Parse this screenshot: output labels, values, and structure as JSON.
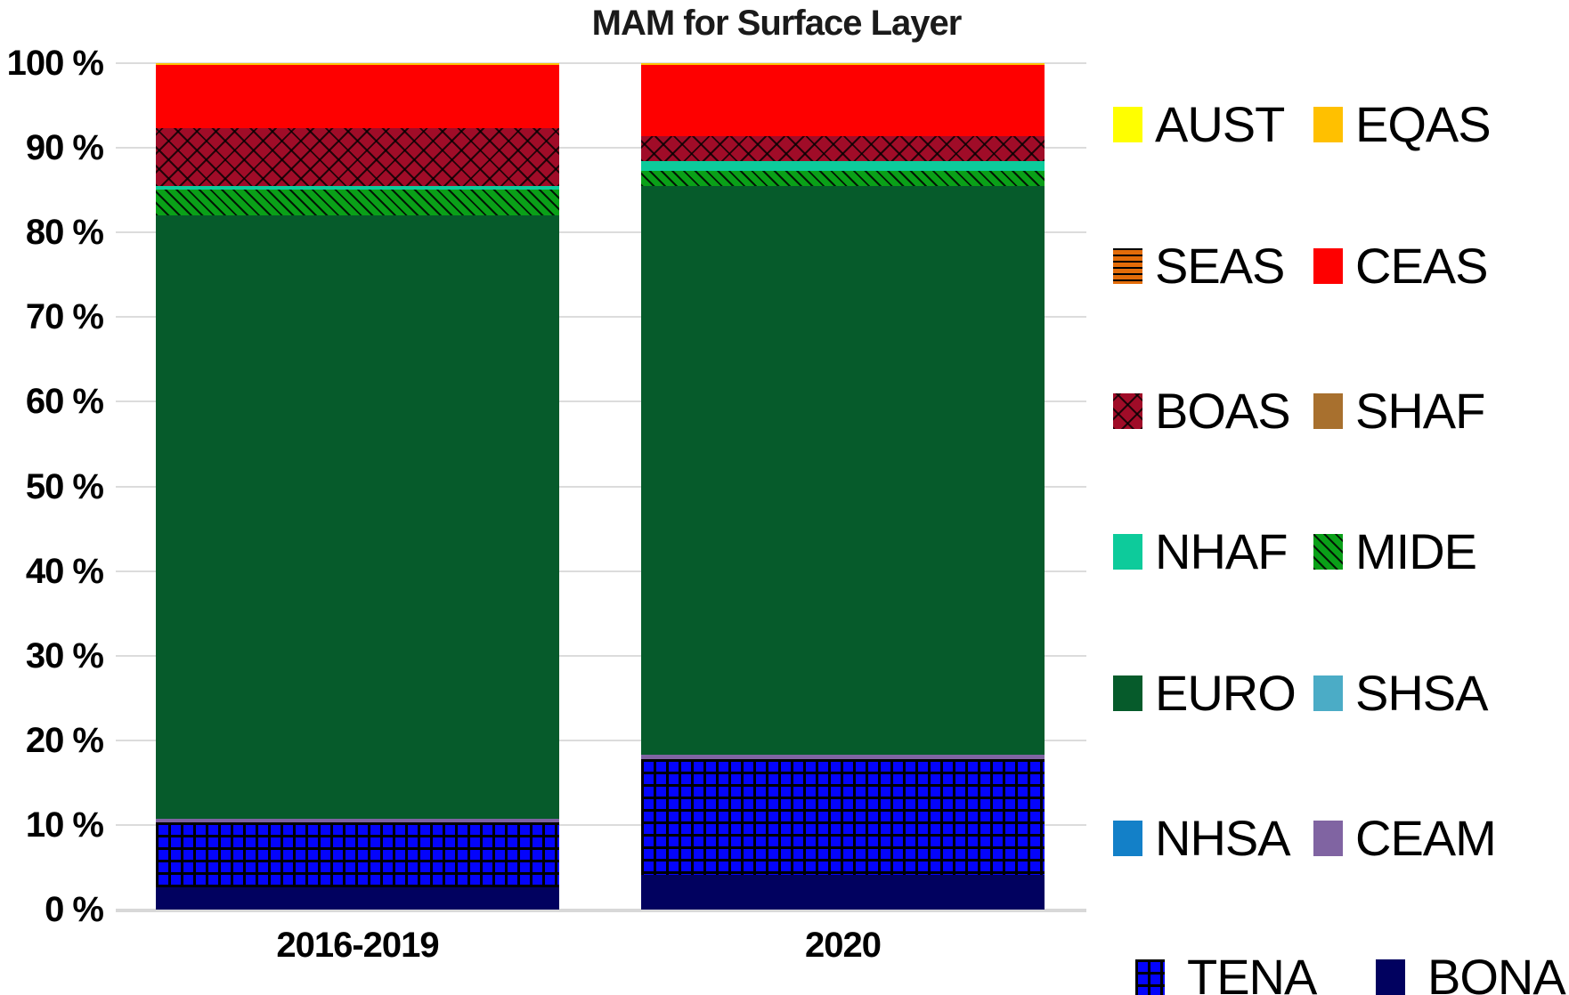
{
  "chart_data": {
    "type": "bar",
    "stacked": true,
    "title": "MAM for Surface Layer",
    "categories": [
      "2016-2019",
      "2020"
    ],
    "xlabel": "",
    "ylabel": "",
    "ylim": [
      0,
      100
    ],
    "ytick_step": 10,
    "ytick_labels": [
      "0 %",
      "10 %",
      "20 %",
      "30 %",
      "40 %",
      "50 %",
      "60 %",
      "70 %",
      "80 %",
      "90 %",
      "100 %"
    ],
    "grid": "horizontal",
    "gridline_color": "#dcdcdc",
    "legend_position": "right",
    "legend_columns": 2,
    "legend_order": [
      "AUST",
      "EQAS",
      "SEAS",
      "CEAS",
      "BOAS",
      "SHAF",
      "NHAF",
      "MIDE",
      "EURO",
      "SHSA",
      "NHSA",
      "CEAM",
      "TENA",
      "BONA"
    ],
    "stack_order_bottom_to_top": [
      "BONA",
      "TENA",
      "CEAM",
      "NHSA",
      "SHSA",
      "EURO",
      "MIDE",
      "NHAF",
      "SHAF",
      "BOAS",
      "CEAS",
      "SEAS",
      "EQAS",
      "AUST"
    ],
    "series": [
      {
        "name": "AUST",
        "color": "#FFFF00",
        "pattern": "solid",
        "values": [
          0,
          0
        ]
      },
      {
        "name": "EQAS",
        "color": "#FFC000",
        "pattern": "solid",
        "values": [
          0.2,
          0.2
        ]
      },
      {
        "name": "SEAS",
        "color": "#E36C09",
        "pattern": "hstripe",
        "values": [
          0,
          0
        ]
      },
      {
        "name": "CEAS",
        "color": "#FE0000",
        "pattern": "solid",
        "values": [
          7.5,
          8.4
        ]
      },
      {
        "name": "BOAS",
        "color": "#A00C28",
        "pattern": "lattice",
        "values": [
          6.8,
          3.0
        ]
      },
      {
        "name": "SHAF",
        "color": "#A8702E",
        "pattern": "solid",
        "values": [
          0,
          0
        ]
      },
      {
        "name": "NHAF",
        "color": "#0DCB9B",
        "pattern": "solid",
        "values": [
          0.4,
          1.1
        ]
      },
      {
        "name": "MIDE",
        "color": "#0AA018",
        "pattern": "diag",
        "values": [
          3.1,
          1.8
        ]
      },
      {
        "name": "EURO",
        "color": "#065B2B",
        "pattern": "solid",
        "values": [
          71.3,
          67.2
        ]
      },
      {
        "name": "SHSA",
        "color": "#4BACC6",
        "pattern": "solid",
        "values": [
          0,
          0
        ]
      },
      {
        "name": "NHSA",
        "color": "#1380C8",
        "pattern": "solid",
        "values": [
          0,
          0
        ]
      },
      {
        "name": "CEAM",
        "color": "#8064A2",
        "pattern": "solid",
        "values": [
          0.4,
          0.5
        ]
      },
      {
        "name": "TENA",
        "color": "#0404FC",
        "pattern": "grid",
        "values": [
          7.7,
          13.7
        ]
      },
      {
        "name": "BONA",
        "color": "#01015F",
        "pattern": "solid",
        "values": [
          2.6,
          4.1
        ]
      }
    ]
  }
}
